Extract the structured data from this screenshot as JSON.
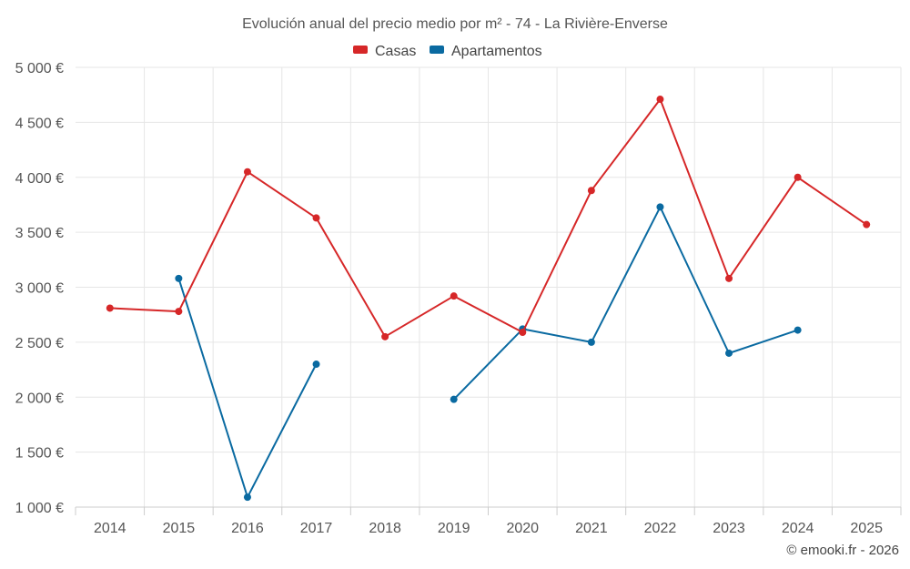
{
  "chart_data": {
    "type": "line",
    "title": "Evolución anual del precio medio por m² - 74 - La Rivière-Enverse",
    "xlabel": "",
    "ylabel": "",
    "x": [
      2014,
      2015,
      2016,
      2017,
      2018,
      2019,
      2020,
      2021,
      2022,
      2023,
      2024,
      2025
    ],
    "x_tick_labels": [
      "2014",
      "2015",
      "2016",
      "2017",
      "2018",
      "2019",
      "2020",
      "2021",
      "2022",
      "2023",
      "2024",
      "2025"
    ],
    "ylim": [
      1000,
      5000
    ],
    "y_ticks": [
      1000,
      1500,
      2000,
      2500,
      3000,
      3500,
      4000,
      4500,
      5000
    ],
    "y_tick_labels": [
      "1 000 €",
      "1 500 €",
      "2 000 €",
      "2 500 €",
      "3 000 €",
      "3 500 €",
      "4 000 €",
      "4 500 €",
      "5 000 €"
    ],
    "grid": true,
    "legend_position": "top-center",
    "series": [
      {
        "name": "Casas",
        "color": "#d62728",
        "values": [
          2810,
          2780,
          4050,
          3630,
          2550,
          2920,
          2590,
          3880,
          4710,
          3080,
          4000,
          3570
        ]
      },
      {
        "name": "Apartamentos",
        "color": "#0a6aa1",
        "values": [
          null,
          3080,
          1090,
          2300,
          null,
          1980,
          2620,
          2500,
          3730,
          2400,
          2610,
          null
        ]
      }
    ],
    "credit": "© emooki.fr - 2026"
  }
}
